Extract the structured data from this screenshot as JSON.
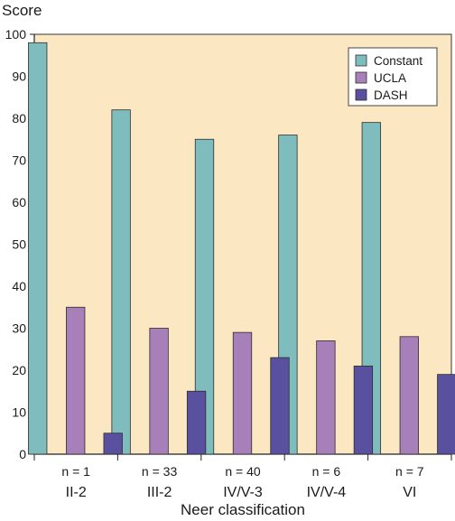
{
  "chart_data": {
    "type": "bar",
    "ylabel": "Score",
    "xlabel": "Neer classification",
    "ylim": [
      0,
      100
    ],
    "yticks": [
      0,
      10,
      20,
      30,
      40,
      50,
      60,
      70,
      80,
      90,
      100
    ],
    "categories": [
      "II-2",
      "III-2",
      "IV/V-3",
      "IV/V-4",
      "VI"
    ],
    "sample_sizes": [
      "n = 1",
      "n = 33",
      "n = 40",
      "n = 6",
      "n = 7"
    ],
    "series": [
      {
        "name": "Constant",
        "color": "#7fbcbd",
        "values": [
          98,
          82,
          75,
          76,
          79
        ]
      },
      {
        "name": "UCLA",
        "color": "#a77fb9",
        "values": [
          35,
          30,
          29,
          27,
          28
        ]
      },
      {
        "name": "DASH",
        "color": "#5a50a0",
        "values": [
          5,
          15,
          23,
          21,
          19
        ]
      }
    ],
    "grid": false,
    "legend_position": "top-right",
    "plot_background": "#fbe8c3"
  }
}
